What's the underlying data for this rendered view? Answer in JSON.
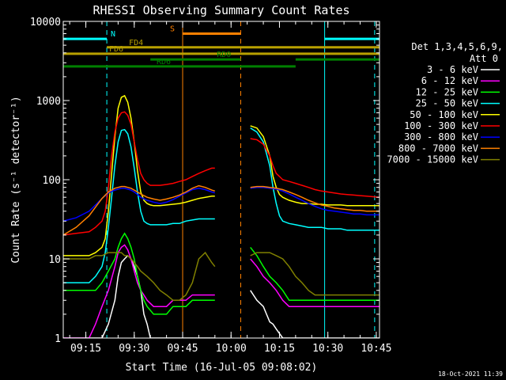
{
  "chart_data": {
    "type": "line",
    "title": "RHESSI Observing Summary Count Rates",
    "xlabel": "Start Time (16-Jul-05 09:08:02)",
    "ylabel": "Count Rate (s⁻¹ detector⁻¹)",
    "ylim": [
      1,
      10000
    ],
    "yscale": "log",
    "xlim_minutes": [
      0,
      98
    ],
    "x_ticks": [
      {
        "label": "09:15",
        "t": 7
      },
      {
        "label": "09:30",
        "t": 22
      },
      {
        "label": "09:45",
        "t": 37
      },
      {
        "label": "10:00",
        "t": 52
      },
      {
        "label": "10:15",
        "t": 67
      },
      {
        "label": "10:30",
        "t": 82
      },
      {
        "label": "10:45",
        "t": 97
      }
    ],
    "y_ticks": [
      {
        "label": "1",
        "v": 1
      },
      {
        "label": "10",
        "v": 10
      },
      {
        "label": "100",
        "v": 100
      },
      {
        "label": "1000",
        "v": 1000
      },
      {
        "label": "10000",
        "v": 10000
      }
    ],
    "legend_header": [
      "Det 1,3,4,5,6,9,",
      "Att 0"
    ],
    "legend_position": "right",
    "series": [
      {
        "name": "3 - 6 keV",
        "color": "#ffffff",
        "x": [
          0,
          8,
          10,
          12,
          14,
          16,
          17,
          18,
          19,
          20,
          21,
          22,
          23,
          24,
          25,
          26,
          27,
          28,
          30,
          32,
          34,
          36,
          38,
          40,
          42,
          44,
          46,
          47,
          57,
          58,
          60,
          62,
          63,
          64,
          65,
          66,
          68,
          70,
          72,
          74,
          76,
          78,
          80,
          82,
          84,
          86,
          88,
          90,
          92,
          94,
          96,
          98
        ],
        "y": [
          1,
          1,
          1,
          1,
          1.5,
          3,
          6,
          9,
          10,
          11,
          10,
          8,
          6,
          4,
          2,
          1.5,
          1,
          1,
          1,
          1,
          1,
          1,
          1,
          1,
          1,
          1,
          1,
          1,
          null,
          4,
          3,
          2.5,
          2,
          1.6,
          1.5,
          1.3,
          1,
          1,
          1,
          1,
          1,
          1,
          1,
          1,
          1,
          1,
          1,
          1,
          1,
          1,
          1,
          1
        ]
      },
      {
        "name": "6 - 12 keV",
        "color": "#ff00ff",
        "x": [
          0,
          8,
          10,
          12,
          14,
          16,
          17,
          18,
          19,
          20,
          21,
          22,
          23,
          24,
          25,
          26,
          28,
          30,
          32,
          34,
          36,
          38,
          40,
          42,
          44,
          46,
          47,
          57,
          58,
          60,
          62,
          64,
          66,
          68,
          70,
          72,
          74,
          76,
          78,
          80,
          82,
          84,
          86,
          88,
          90,
          92,
          94,
          96,
          98
        ],
        "y": [
          1,
          1,
          1.5,
          2.5,
          4,
          8,
          12,
          14,
          15,
          13,
          10,
          7,
          5,
          4,
          3.5,
          3,
          2.5,
          2.5,
          2.5,
          3,
          3,
          3,
          3.5,
          3.5,
          3.5,
          3.5,
          3.5,
          null,
          10,
          8,
          6,
          5,
          4,
          3,
          2.5,
          2.5,
          2.5,
          2.5,
          2.5,
          2.5,
          2.5,
          2.5,
          2.5,
          2.5,
          2.5,
          2.5,
          2.5,
          2.5,
          2.5
        ]
      },
      {
        "name": "12 - 25 keV",
        "color": "#00ff00",
        "x": [
          0,
          8,
          10,
          12,
          14,
          16,
          17,
          18,
          19,
          20,
          21,
          22,
          23,
          24,
          25,
          26,
          28,
          30,
          32,
          34,
          36,
          38,
          40,
          42,
          44,
          46,
          47,
          57,
          58,
          60,
          62,
          64,
          66,
          68,
          70,
          72,
          74,
          76,
          78,
          80,
          82,
          84,
          86,
          88,
          90,
          92,
          94,
          96,
          98
        ],
        "y": [
          4,
          4,
          4,
          5,
          7,
          10,
          14,
          18,
          21,
          18,
          14,
          10,
          6,
          4,
          3,
          2.5,
          2,
          2,
          2,
          2.5,
          2.5,
          2.5,
          3,
          3,
          3,
          3,
          3,
          null,
          14,
          11,
          8,
          6,
          5,
          4,
          3,
          3,
          3,
          3,
          3,
          3,
          3,
          3,
          3,
          3,
          3,
          3,
          3,
          3,
          3
        ]
      },
      {
        "name": "25 - 50 keV",
        "color": "#00ffff",
        "x": [
          0,
          4,
          8,
          10,
          12,
          13,
          14,
          15,
          16,
          17,
          18,
          19,
          20,
          21,
          22,
          23,
          24,
          25,
          26,
          27,
          28,
          30,
          32,
          34,
          36,
          38,
          40,
          42,
          44,
          46,
          47,
          57,
          58,
          60,
          62,
          64,
          65,
          66,
          67,
          68,
          70,
          72,
          74,
          76,
          78,
          80,
          82,
          84,
          86,
          88,
          90,
          92,
          94,
          96,
          98
        ],
        "y": [
          5,
          5,
          5,
          6,
          8,
          12,
          25,
          60,
          150,
          300,
          420,
          430,
          380,
          260,
          140,
          70,
          40,
          30,
          28,
          27,
          27,
          27,
          27,
          28,
          28,
          30,
          31,
          32,
          32,
          32,
          32,
          null,
          450,
          400,
          300,
          150,
          80,
          50,
          35,
          30,
          28,
          27,
          26,
          25,
          25,
          25,
          24,
          24,
          24,
          23,
          23,
          23,
          23,
          23,
          23
        ]
      },
      {
        "name": "50 - 100 keV",
        "color": "#ffff00",
        "x": [
          0,
          4,
          8,
          10,
          12,
          13,
          14,
          15,
          16,
          17,
          18,
          19,
          20,
          21,
          22,
          23,
          24,
          25,
          26,
          27,
          28,
          30,
          32,
          34,
          36,
          38,
          40,
          42,
          44,
          46,
          47,
          57,
          58,
          60,
          62,
          64,
          65,
          66,
          67,
          68,
          70,
          72,
          74,
          76,
          78,
          80,
          82,
          84,
          86,
          88,
          90,
          92,
          94,
          96,
          98
        ],
        "y": [
          11,
          11,
          11,
          12,
          14,
          18,
          40,
          120,
          350,
          800,
          1100,
          1150,
          950,
          600,
          300,
          130,
          70,
          55,
          50,
          48,
          47,
          47,
          48,
          49,
          50,
          52,
          55,
          58,
          60,
          62,
          62,
          null,
          480,
          450,
          350,
          200,
          110,
          80,
          65,
          60,
          55,
          52,
          50,
          50,
          49,
          49,
          48,
          48,
          48,
          47,
          47,
          47,
          47,
          47,
          47
        ]
      },
      {
        "name": "100 - 300 keV",
        "color": "#ff0000",
        "x": [
          0,
          4,
          8,
          10,
          12,
          13,
          14,
          15,
          16,
          17,
          18,
          19,
          20,
          21,
          22,
          23,
          24,
          25,
          26,
          27,
          28,
          30,
          32,
          34,
          36,
          38,
          40,
          42,
          44,
          46,
          47,
          57,
          58,
          60,
          62,
          64,
          65,
          66,
          67,
          68,
          70,
          72,
          74,
          76,
          78,
          80,
          82,
          84,
          86,
          88,
          90,
          92,
          94,
          96,
          98
        ],
        "y": [
          20,
          21,
          22,
          25,
          30,
          40,
          80,
          200,
          400,
          600,
          700,
          720,
          650,
          500,
          300,
          180,
          120,
          100,
          90,
          85,
          85,
          85,
          87,
          90,
          95,
          100,
          110,
          120,
          130,
          140,
          140,
          null,
          330,
          320,
          280,
          200,
          150,
          120,
          110,
          100,
          95,
          90,
          85,
          80,
          75,
          72,
          70,
          68,
          66,
          65,
          64,
          63,
          62,
          61,
          60
        ]
      },
      {
        "name": "300 - 800 keV",
        "color": "#0000ff",
        "x": [
          0,
          4,
          8,
          10,
          12,
          14,
          16,
          17,
          18,
          19,
          20,
          21,
          22,
          23,
          24,
          26,
          28,
          30,
          32,
          34,
          36,
          38,
          40,
          42,
          44,
          46,
          47,
          57,
          58,
          60,
          62,
          64,
          66,
          68,
          70,
          72,
          74,
          76,
          78,
          80,
          82,
          84,
          86,
          88,
          90,
          92,
          94,
          96,
          98
        ],
        "y": [
          30,
          33,
          40,
          48,
          58,
          68,
          74,
          76,
          78,
          78,
          76,
          74,
          70,
          65,
          60,
          55,
          52,
          50,
          52,
          56,
          62,
          68,
          75,
          78,
          75,
          70,
          68,
          null,
          78,
          80,
          80,
          78,
          76,
          72,
          66,
          60,
          55,
          50,
          46,
          43,
          41,
          40,
          39,
          38,
          37,
          37,
          36,
          36,
          36
        ],
        "_": ""
      },
      {
        "name": "800 - 7000 keV",
        "color": "#ff8000",
        "x": [
          0,
          4,
          8,
          10,
          12,
          14,
          16,
          17,
          18,
          19,
          20,
          21,
          22,
          23,
          24,
          26,
          28,
          30,
          32,
          34,
          36,
          38,
          40,
          42,
          44,
          46,
          47,
          57,
          58,
          60,
          62,
          64,
          66,
          68,
          70,
          72,
          74,
          76,
          78,
          80,
          82,
          84,
          86,
          88,
          90,
          92,
          94,
          96,
          98
        ],
        "y": [
          20,
          25,
          35,
          45,
          58,
          70,
          78,
          80,
          82,
          82,
          80,
          78,
          74,
          70,
          66,
          60,
          57,
          55,
          57,
          60,
          64,
          70,
          78,
          84,
          80,
          74,
          72,
          null,
          80,
          82,
          82,
          80,
          78,
          75,
          70,
          65,
          60,
          55,
          51,
          48,
          46,
          44,
          43,
          42,
          41,
          41,
          40,
          40,
          40
        ]
      },
      {
        "name": "7000 - 15000 keV",
        "color": "#808000",
        "x": [
          0,
          4,
          8,
          10,
          12,
          14,
          16,
          17,
          18,
          19,
          20,
          21,
          22,
          23,
          24,
          26,
          28,
          30,
          32,
          34,
          36,
          38,
          40,
          42,
          44,
          46,
          47,
          57,
          58,
          60,
          62,
          64,
          66,
          68,
          70,
          72,
          74,
          76,
          78,
          80,
          82,
          84,
          86,
          88,
          90,
          92,
          94,
          96,
          98
        ],
        "y": [
          10,
          10,
          10,
          11,
          11,
          12,
          12,
          12,
          12,
          11,
          11,
          10,
          9,
          8,
          7,
          6,
          5,
          4,
          3.5,
          3,
          3,
          3.5,
          5,
          10,
          12,
          9,
          8,
          null,
          11,
          12,
          12,
          12,
          11,
          10,
          8,
          6,
          5,
          4,
          3.5,
          3.5,
          3.5,
          3.5,
          3.5,
          3.5,
          3.5,
          3.5,
          3.5,
          3.5,
          3.5
        ]
      }
    ],
    "flag_bars": [
      {
        "label": "N",
        "color": "#00ffff",
        "y": 6000,
        "segments": [
          [
            0,
            13.5
          ],
          [
            81,
            98
          ]
        ]
      },
      {
        "label": "S",
        "color": "#ff8000",
        "y": 7000,
        "segments": [
          [
            37,
            55
          ]
        ]
      },
      {
        "label": "FD4",
        "color": "#b8a000",
        "y": 4700,
        "segments": [
          [
            13.5,
            98
          ]
        ]
      },
      {
        "label": "FD6",
        "color": "#b8a000",
        "y": 3900,
        "segments": [
          [
            0,
            98
          ]
        ]
      },
      {
        "label": "RD0",
        "color": "#008000",
        "y": 3300,
        "segments": [
          [
            27,
            55
          ],
          [
            72,
            98
          ]
        ]
      },
      {
        "label": "RD6",
        "color": "#008000",
        "y": 2700,
        "segments": [
          [
            0,
            55
          ],
          [
            55,
            72
          ]
        ]
      }
    ],
    "vertical_lines": [
      {
        "t": 13.5,
        "color": "#00ffff",
        "style": "dashed"
      },
      {
        "t": 37,
        "color": "#ff8000",
        "style": "solid"
      },
      {
        "t": 55,
        "color": "#ff8000",
        "style": "dashed"
      },
      {
        "t": 81,
        "color": "#00ffff",
        "style": "solid"
      },
      {
        "t": 96.5,
        "color": "#00ffff",
        "style": "dashed"
      },
      {
        "t": 0,
        "color": "#00ffff",
        "style": "solid"
      }
    ]
  },
  "footer": {
    "date_stamp": "18-Oct-2021 11:39"
  }
}
